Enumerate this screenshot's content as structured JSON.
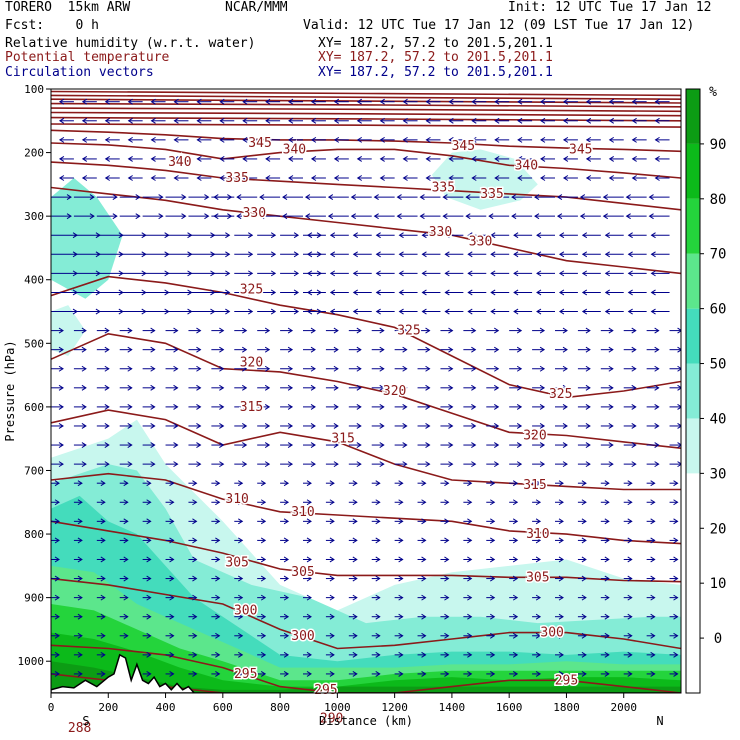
{
  "header": {
    "model": "TORERO  15km ARW",
    "org": "NCAR/MMM",
    "init": "Init: 12 UTC Tue 17 Jan 12",
    "fcst": "Fcst:    0 h",
    "valid": "Valid: 12 UTC Tue 17 Jan 12 (09 LST Tue 17 Jan 12)",
    "rh_label": "Relative humidity (w.r.t. water)",
    "theta_label": "Potential temperature",
    "vec_label": "Circulation vectors",
    "xy_rh": "XY= 187.2, 57.2 to 201.5,201.1",
    "xy_theta": "XY= 187.2, 57.2 to 201.5,201.1",
    "xy_vec": "XY= 187.2, 57.2 to 201.5,201.1"
  },
  "colors": {
    "theta": "#8b1a1a",
    "vectors": "#00008b",
    "theta_label_text": "#8b1a1a",
    "vec_label_text": "#00008b",
    "rh_shades": [
      "#ffffff",
      "#ffffff",
      "#ffffff",
      "#ffffff",
      "#c8f7ee",
      "#84ecd6",
      "#44dcbc",
      "#5ce68c",
      "#24d43c",
      "#0cba1a",
      "#0c9c14",
      "#067808"
    ]
  },
  "chart_data": {
    "type": "cross-section",
    "xlabel": "Distance (km)",
    "ylabel": "Pressure (hPa)",
    "x_ticks": [
      0,
      200,
      400,
      600,
      800,
      1000,
      1200,
      1400,
      1600,
      1800,
      2000
    ],
    "x_end_labels": {
      "left": "S",
      "right": "N"
    },
    "xlim": [
      0,
      2200
    ],
    "y_ticks": [
      100,
      200,
      300,
      400,
      500,
      600,
      700,
      800,
      900,
      1000
    ],
    "ylim": [
      1050,
      100
    ],
    "colorbar": {
      "unit": "%",
      "tick_labels": [
        "90",
        "80",
        "70",
        "60",
        "50",
        "40",
        "30",
        "20",
        "10",
        "0"
      ],
      "levels": [
        -10,
        0,
        10,
        20,
        30,
        40,
        50,
        60,
        70,
        80,
        90,
        100
      ]
    },
    "theta_labels": [
      {
        "value": "345",
        "x": 730,
        "p": 185
      },
      {
        "value": "340",
        "x": 850,
        "p": 195
      },
      {
        "value": "345",
        "x": 1440,
        "p": 190
      },
      {
        "value": "345",
        "x": 1850,
        "p": 195
      },
      {
        "value": "340",
        "x": 450,
        "p": 215
      },
      {
        "value": "335",
        "x": 650,
        "p": 240
      },
      {
        "value": "340",
        "x": 1660,
        "p": 220
      },
      {
        "value": "335",
        "x": 1370,
        "p": 255
      },
      {
        "value": "335",
        "x": 1540,
        "p": 265
      },
      {
        "value": "330",
        "x": 710,
        "p": 295
      },
      {
        "value": "330",
        "x": 1360,
        "p": 325
      },
      {
        "value": "330",
        "x": 1500,
        "p": 340
      },
      {
        "value": "325",
        "x": 700,
        "p": 415
      },
      {
        "value": "325",
        "x": 1250,
        "p": 480
      },
      {
        "value": "320",
        "x": 700,
        "p": 530
      },
      {
        "value": "320",
        "x": 1200,
        "p": 575
      },
      {
        "value": "325",
        "x": 1780,
        "p": 580
      },
      {
        "value": "315",
        "x": 700,
        "p": 600
      },
      {
        "value": "315",
        "x": 1020,
        "p": 650
      },
      {
        "value": "320",
        "x": 1690,
        "p": 645
      },
      {
        "value": "315",
        "x": 1690,
        "p": 723
      },
      {
        "value": "310",
        "x": 650,
        "p": 745
      },
      {
        "value": "310",
        "x": 880,
        "p": 765
      },
      {
        "value": "310",
        "x": 1700,
        "p": 800
      },
      {
        "value": "305",
        "x": 650,
        "p": 845
      },
      {
        "value": "305",
        "x": 880,
        "p": 860
      },
      {
        "value": "305",
        "x": 1700,
        "p": 868
      },
      {
        "value": "300",
        "x": 680,
        "p": 920
      },
      {
        "value": "300",
        "x": 880,
        "p": 960
      },
      {
        "value": "300",
        "x": 1750,
        "p": 955
      },
      {
        "value": "295",
        "x": 680,
        "p": 1020
      },
      {
        "value": "295",
        "x": 960,
        "p": 1045
      },
      {
        "value": "295",
        "x": 1800,
        "p": 1030
      },
      {
        "value": "290",
        "x": 980,
        "p": 1090
      },
      {
        "value": "288",
        "x": 100,
        "p": 1105
      }
    ],
    "theta_contours": [
      {
        "level": 290,
        "x": [
          0,
          300,
          600,
          900,
          1000,
          1200,
          1400,
          1600,
          1800,
          2000,
          2200
        ],
        "p": [
          1020,
          1035,
          1050,
          1075,
          1085,
          1090,
          1085,
          1075,
          1070,
          1070,
          1070
        ]
      },
      {
        "level": 295,
        "x": [
          0,
          200,
          400,
          600,
          800,
          1000,
          1200,
          1400,
          1600,
          1800,
          2000,
          2200
        ],
        "p": [
          975,
          980,
          990,
          1010,
          1040,
          1050,
          1050,
          1040,
          1030,
          1030,
          1040,
          1050
        ]
      },
      {
        "level": 300,
        "x": [
          0,
          200,
          400,
          600,
          800,
          1000,
          1200,
          1400,
          1600,
          1800,
          2000,
          2200
        ],
        "p": [
          870,
          880,
          895,
          910,
          950,
          980,
          975,
          965,
          955,
          955,
          965,
          980
        ]
      },
      {
        "level": 305,
        "x": [
          0,
          200,
          400,
          600,
          800,
          1000,
          1200,
          1400,
          1600,
          1800,
          2000,
          2200
        ],
        "p": [
          780,
          795,
          810,
          830,
          855,
          865,
          865,
          865,
          868,
          868,
          873,
          875
        ]
      },
      {
        "level": 310,
        "x": [
          0,
          200,
          400,
          600,
          800,
          1000,
          1200,
          1400,
          1600,
          1800,
          2000,
          2200
        ],
        "p": [
          715,
          705,
          715,
          745,
          765,
          770,
          775,
          780,
          795,
          800,
          810,
          815
        ]
      },
      {
        "level": 315,
        "x": [
          0,
          200,
          400,
          600,
          800,
          1000,
          1200,
          1400,
          1600,
          1800,
          2000,
          2200
        ],
        "p": [
          625,
          605,
          620,
          660,
          640,
          655,
          690,
          715,
          720,
          725,
          730,
          730
        ]
      },
      {
        "level": 320,
        "x": [
          0,
          200,
          400,
          600,
          800,
          1000,
          1200,
          1400,
          1600,
          1800,
          2000,
          2200
        ],
        "p": [
          525,
          485,
          500,
          540,
          545,
          560,
          580,
          610,
          640,
          645,
          655,
          665
        ]
      },
      {
        "level": 325,
        "x": [
          0,
          200,
          400,
          600,
          800,
          1000,
          1200,
          1400,
          1600,
          1800,
          2000,
          2200
        ],
        "p": [
          425,
          395,
          405,
          420,
          440,
          455,
          475,
          520,
          565,
          585,
          575,
          560
        ]
      },
      {
        "level": 330,
        "x": [
          0,
          200,
          400,
          600,
          800,
          1000,
          1200,
          1400,
          1600,
          1800,
          2000,
          2200
        ],
        "p": [
          255,
          265,
          275,
          290,
          300,
          310,
          320,
          330,
          350,
          370,
          380,
          390
        ]
      },
      {
        "level": 335,
        "x": [
          0,
          200,
          400,
          600,
          800,
          1000,
          1200,
          1400,
          1600,
          1800,
          2000,
          2200
        ],
        "p": [
          215,
          220,
          228,
          240,
          245,
          250,
          255,
          260,
          265,
          270,
          280,
          290
        ]
      },
      {
        "level": 340,
        "x": [
          0,
          200,
          400,
          600,
          800,
          1000,
          1200,
          1400,
          1600,
          1800,
          2000,
          2200
        ],
        "p": [
          185,
          188,
          195,
          210,
          200,
          195,
          195,
          205,
          220,
          225,
          232,
          240
        ]
      },
      {
        "level": 345,
        "x": [
          0,
          200,
          400,
          600,
          800,
          1000,
          1200,
          1400,
          1600,
          1800,
          2000,
          2200
        ],
        "p": [
          165,
          168,
          172,
          178,
          180,
          180,
          182,
          185,
          190,
          193,
          195,
          198
        ]
      },
      {
        "level": 350,
        "x": [
          0,
          1100,
          2200
        ],
        "p": [
          155,
          157,
          160
        ]
      },
      {
        "level": 355,
        "x": [
          0,
          1100,
          2200
        ],
        "p": [
          145,
          147,
          150
        ]
      },
      {
        "level": 360,
        "x": [
          0,
          1100,
          2200
        ],
        "p": [
          137,
          139,
          142
        ]
      },
      {
        "level": 365,
        "x": [
          0,
          1100,
          2200
        ],
        "p": [
          130,
          132,
          135
        ]
      },
      {
        "level": 370,
        "x": [
          0,
          1100,
          2200
        ],
        "p": [
          123,
          125,
          128
        ]
      },
      {
        "level": 375,
        "x": [
          0,
          1100,
          2200
        ],
        "p": [
          116,
          119,
          122
        ]
      },
      {
        "level": 380,
        "x": [
          0,
          1100,
          2200
        ],
        "p": [
          110,
          113,
          116
        ]
      },
      {
        "level": 385,
        "x": [
          0,
          1100,
          2200
        ],
        "p": [
          104,
          107,
          110
        ]
      }
    ],
    "rh_regions": [
      {
        "level": 30,
        "x": [
          0,
          200,
          300,
          400,
          600,
          800,
          1000,
          1200,
          1400,
          1600,
          1800,
          2000,
          2200,
          2200,
          0
        ],
        "p": [
          680,
          650,
          620,
          690,
          780,
          880,
          920,
          880,
          860,
          850,
          840,
          870,
          880,
          1050,
          1050
        ]
      },
      {
        "level": 40,
        "x": [
          0,
          200,
          300,
          400,
          500,
          700,
          900,
          1100,
          1300,
          1500,
          1700,
          1900,
          2100,
          2200,
          2200,
          0
        ],
        "p": [
          720,
          690,
          700,
          760,
          840,
          880,
          900,
          940,
          930,
          930,
          940,
          935,
          930,
          930,
          1050,
          1050
        ]
      },
      {
        "level": 50,
        "x": [
          0,
          100,
          200,
          300,
          400,
          500,
          600,
          700,
          800,
          1000,
          1200,
          1400,
          1600,
          1800,
          2000,
          2200,
          2200,
          0
        ],
        "p": [
          760,
          740,
          780,
          800,
          850,
          900,
          930,
          960,
          990,
          1000,
          990,
          985,
          985,
          990,
          985,
          990,
          1050,
          1050
        ]
      },
      {
        "level": 60,
        "x": [
          0,
          150,
          300,
          450,
          600,
          800,
          1000,
          1200,
          1400,
          1600,
          1800,
          2000,
          2200,
          2200,
          0
        ],
        "p": [
          850,
          860,
          910,
          940,
          970,
          1010,
          1010,
          1010,
          1005,
          1005,
          1000,
          1005,
          1005,
          1050,
          1050
        ]
      },
      {
        "level": 70,
        "x": [
          0,
          150,
          300,
          450,
          600,
          800,
          1000,
          1200,
          1400,
          1600,
          1800,
          2000,
          2200,
          2200,
          0
        ],
        "p": [
          910,
          920,
          950,
          980,
          1000,
          1030,
          1030,
          1020,
          1015,
          1015,
          1015,
          1015,
          1015,
          1050,
          1050
        ]
      },
      {
        "level": 80,
        "x": [
          0,
          150,
          300,
          450,
          600,
          800,
          1000,
          1200,
          1400,
          1600,
          1800,
          2000,
          2200,
          2200,
          0
        ],
        "p": [
          955,
          965,
          985,
          1010,
          1030,
          1040,
          1040,
          1030,
          1025,
          1030,
          1025,
          1025,
          1030,
          1050,
          1050
        ]
      },
      {
        "level": 90,
        "x": [
          0,
          150,
          300,
          450,
          600,
          800,
          1000,
          1200,
          1400,
          1600,
          1800,
          2000,
          2200,
          2200,
          0
        ],
        "p": [
          1000,
          1010,
          1025,
          1040,
          1045,
          1045,
          1040,
          1040,
          1040,
          1040,
          1040,
          1040,
          1040,
          1050,
          1050
        ]
      },
      {
        "level": 40,
        "x": [
          0,
          80,
          160,
          250,
          200,
          120,
          0
        ],
        "p": [
          270,
          240,
          270,
          330,
          400,
          430,
          400
        ]
      },
      {
        "level": 30,
        "x": [
          1330,
          1400,
          1500,
          1620,
          1700,
          1640,
          1500,
          1380
        ],
        "p": [
          235,
          200,
          195,
          210,
          250,
          275,
          290,
          270
        ]
      },
      {
        "level": 30,
        "x": [
          0,
          60,
          120,
          60,
          0
        ],
        "p": [
          450,
          440,
          480,
          520,
          510
        ]
      }
    ],
    "terrain": {
      "x": [
        0,
        40,
        80,
        120,
        160,
        200,
        220,
        240,
        260,
        280,
        300,
        320,
        340,
        360,
        380,
        400,
        420,
        440,
        460,
        480,
        500,
        600,
        800,
        1000,
        1200,
        1400,
        1600,
        1800,
        2000,
        2200
      ],
      "p": [
        1045,
        1040,
        1042,
        1030,
        1040,
        1025,
        1020,
        990,
        995,
        1030,
        1005,
        1030,
        1035,
        1025,
        1040,
        1035,
        1045,
        1035,
        1045,
        1040,
        1050,
        1050,
        1050,
        1050,
        1050,
        1050,
        1050,
        1050,
        1050,
        1050
      ]
    },
    "vectors": {
      "x_levels": [
        0,
        80,
        160,
        240,
        320,
        400,
        480,
        560,
        640,
        720,
        800,
        880,
        960,
        1040,
        1120,
        1200,
        1280,
        1360,
        1440,
        1520,
        1600,
        1680,
        1760,
        1840,
        1920,
        2000,
        2080,
        2160
      ],
      "p_levels": [
        120,
        150,
        180,
        210,
        240,
        270,
        300,
        330,
        360,
        390,
        420,
        450,
        480,
        510,
        540,
        570,
        600,
        630,
        660,
        690,
        720,
        750,
        780,
        810,
        840,
        870,
        900,
        930,
        960,
        990,
        1020
      ]
    }
  }
}
